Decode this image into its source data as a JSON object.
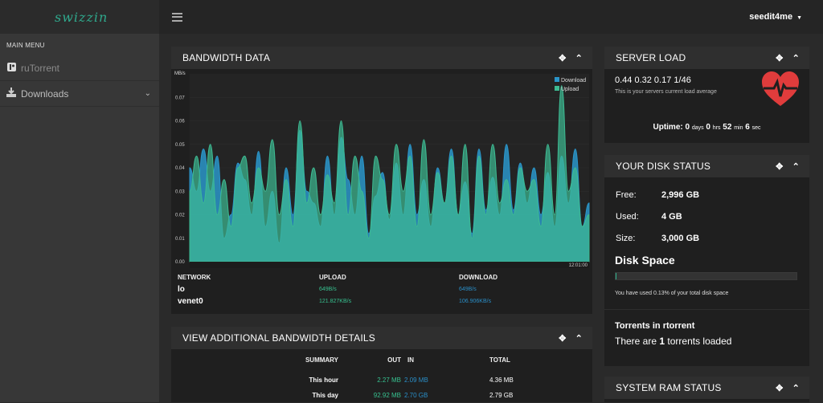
{
  "brand": {
    "logo_text": "swizzin"
  },
  "sidebar": {
    "menu_title": "MAIN MENU",
    "items": [
      {
        "label": "ruTorrent",
        "icon": "rutorrent-icon"
      },
      {
        "label": "Downloads",
        "icon": "download-icon"
      }
    ]
  },
  "topbar": {
    "username": "seedit4me"
  },
  "bandwidth": {
    "title": "BANDWIDTH DATA",
    "headers": {
      "network": "NETWORK",
      "upload": "UPLOAD",
      "download": "DOWNLOAD"
    },
    "rows": [
      {
        "network": "lo",
        "upload": "649B/s",
        "download": "649B/s"
      },
      {
        "network": "venet0",
        "upload": "121.827KB/s",
        "download": "106.906KB/s"
      }
    ]
  },
  "chart_data": {
    "type": "area",
    "ylabel": "MB/s",
    "ylim": [
      0,
      0.08
    ],
    "yticks": [
      "0.00",
      "0.01",
      "0.02",
      "0.03",
      "0.04",
      "0.05",
      "0.06",
      "0.07"
    ],
    "xtick": "12:01:00",
    "legend_position": "top-right",
    "series": [
      {
        "name": "Download",
        "color": "#2a95c9",
        "values": [
          0.04,
          0.03,
          0.048,
          0.03,
          0.045,
          0.01,
          0.02,
          0.042,
          0.035,
          0.02,
          0.047,
          0.015,
          0.03,
          0.008,
          0.04,
          0.02,
          0.056,
          0.03,
          0.025,
          0.015,
          0.045,
          0.02,
          0.053,
          0.035,
          0.02,
          0.045,
          0.012,
          0.028,
          0.038,
          0.018,
          0.042,
          0.02,
          0.05,
          0.02,
          0.035,
          0.015,
          0.04,
          0.025,
          0.048,
          0.02,
          0.034,
          0.012,
          0.048,
          0.022,
          0.036,
          0.02,
          0.05,
          0.022,
          0.042,
          0.025,
          0.04,
          0.02,
          0.038,
          0.015,
          0.045,
          0.025,
          0.048,
          0.015,
          0.025
        ]
      },
      {
        "name": "Upload",
        "color": "#3dbb93",
        "values": [
          0.03,
          0.045,
          0.025,
          0.05,
          0.02,
          0.035,
          0.015,
          0.04,
          0.045,
          0.025,
          0.04,
          0.03,
          0.052,
          0.02,
          0.035,
          0.015,
          0.06,
          0.025,
          0.04,
          0.02,
          0.037,
          0.025,
          0.06,
          0.02,
          0.045,
          0.03,
          0.01,
          0.045,
          0.035,
          0.02,
          0.05,
          0.03,
          0.045,
          0.015,
          0.052,
          0.02,
          0.038,
          0.025,
          0.045,
          0.02,
          0.05,
          0.01,
          0.045,
          0.02,
          0.05,
          0.025,
          0.035,
          0.02,
          0.04,
          0.03,
          0.035,
          0.015,
          0.05,
          0.02,
          0.075,
          0.03,
          0.04,
          0.015,
          0.02
        ]
      }
    ]
  },
  "details": {
    "title": "VIEW ADDITIONAL BANDWIDTH DETAILS",
    "headers": {
      "summary": "SUMMARY",
      "out": "OUT",
      "in": "IN",
      "total": "TOTAL"
    },
    "rows": [
      {
        "summary": "This hour",
        "out": "2.27 MB",
        "in": "2.09 MB",
        "total": "4.36 MB"
      },
      {
        "summary": "This day",
        "out": "92.92 MB",
        "in": "2.70 GB",
        "total": "2.79 GB"
      }
    ]
  },
  "server_load": {
    "title": "SERVER LOAD",
    "values": "0.44 0.32 0.17 1/46",
    "caption": "This is your servers current load average",
    "uptime_label": "Uptime:",
    "uptime": {
      "days": "0",
      "days_unit": "days",
      "hrs": "0",
      "hrs_unit": "hrs",
      "min": "52",
      "min_unit": "min",
      "sec": "6",
      "sec_unit": "sec"
    }
  },
  "disk": {
    "title": "YOUR DISK STATUS",
    "rows": [
      {
        "label": "Free:",
        "value": "2,996 GB"
      },
      {
        "label": "Used:",
        "value": "4 GB"
      },
      {
        "label": "Size:",
        "value": "3,000 GB"
      }
    ],
    "section_title": "Disk Space",
    "used_percent": 0.13,
    "usage_note": "You have used 0.13% of your total disk space",
    "torrents_title": "Torrents in rtorrent",
    "torrents_prefix": "There are",
    "torrents_count": "1",
    "torrents_suffix": "torrents loaded"
  },
  "ram": {
    "title": "SYSTEM RAM STATUS"
  }
}
